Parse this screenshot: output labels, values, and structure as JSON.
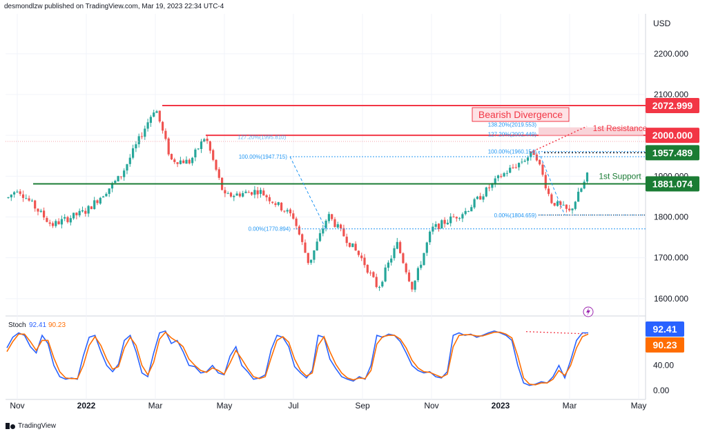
{
  "header": {
    "publisher_text": "desmondlzw published on TradingView.com, Mar 19, 2023 22:34 UTC-4"
  },
  "footer": {
    "logo_text": "TradingView"
  },
  "colors": {
    "up": "#26a69a",
    "down": "#ef5350",
    "resistance": "#f23645",
    "support": "#1b7c34",
    "fib": "#2196f3",
    "stoch_k": "#2962ff",
    "stoch_d": "#ff6d00",
    "divergence": "#f23645",
    "tag_blue": "#2962ff",
    "tag_orange": "#ff6d00",
    "grid": "#f0f3fa"
  },
  "chart_data": [
    {
      "type": "candlestick",
      "title": "",
      "currency_label": "USD",
      "x_tick_labels": [
        "Nov",
        "2022",
        "Mar",
        "May",
        "Jul",
        "Sep",
        "Nov",
        "2023",
        "Mar",
        "May"
      ],
      "y_tick_labels": [
        "2200.000",
        "2100.000",
        "1900.000",
        "1800.000",
        "1700.000",
        "1600.000"
      ],
      "ylim": [
        1555,
        2270
      ],
      "grid": true,
      "price_path": [
        [
          "Oct 2021",
          1782
        ],
        [
          "Nov 2021",
          1870
        ],
        [
          "Dec 2021",
          1780
        ],
        [
          "Jan 2022",
          1815
        ],
        [
          "Feb 2022",
          1900
        ],
        [
          "Mar 2022",
          2070
        ],
        [
          "Mar 2022",
          1940
        ],
        [
          "Apr 2022",
          1935
        ],
        [
          "Apr 2022",
          1998
        ],
        [
          "May 2022",
          1850
        ],
        [
          "Jun 2022",
          1865
        ],
        [
          "Jul 2022",
          1800
        ],
        [
          "Jul 2022",
          1685
        ],
        [
          "Aug 2022",
          1805
        ],
        [
          "Sep 2022",
          1695
        ],
        [
          "Sep 2022",
          1625
        ],
        [
          "Oct 2022",
          1735
        ],
        [
          "Oct 2022",
          1625
        ],
        [
          "Nov 2022",
          1770
        ],
        [
          "Dec 2022",
          1815
        ],
        [
          "Jan 2023",
          1900
        ],
        [
          "Feb 2023",
          1960
        ],
        [
          "Feb 2023",
          1840
        ],
        [
          "Mar 2023",
          1812
        ],
        [
          "Mar 2023",
          1888
        ],
        [
          "Mar 2023",
          1985
        ]
      ],
      "levels": [
        {
          "label": "2072.999",
          "value": 2072.999,
          "kind": "resistance"
        },
        {
          "label": "2000.000",
          "value": 2000.0,
          "kind": "resistance"
        },
        {
          "label": "1957.489",
          "value": 1957.489,
          "kind": "support"
        },
        {
          "label": "1881.074",
          "value": 1881.074,
          "kind": "support"
        }
      ],
      "annotations": {
        "bearish_divergence": "Bearish Divergence",
        "resistance_1": "1st Resistance",
        "support_1": "1st Support"
      },
      "fib_left": [
        {
          "label": "127.20%(1995.810)",
          "value": 1995.81
        },
        {
          "label": "100.00%(1947.715)",
          "value": 1947.715
        },
        {
          "label": "0.00%(1770.894)",
          "value": 1770.894
        }
      ],
      "fib_right": [
        {
          "label": "138.20%(2019.553)",
          "value": 2019.553
        },
        {
          "label": "127.20%(2002.449)",
          "value": 2002.449
        },
        {
          "label": "100.00%(1960.154)",
          "value": 1960.154
        },
        {
          "label": "0.00%(1804.659)",
          "value": 1804.659
        }
      ]
    },
    {
      "type": "line",
      "indicator": "Stoch",
      "legend": {
        "name": "Stoch",
        "k_value": "92.41",
        "d_value": "90.23"
      },
      "y_tick_labels": [
        "40.00",
        "0.00"
      ],
      "ylim": [
        -8,
        108
      ],
      "series": [
        {
          "name": "92.41",
          "values": [
            68,
            85,
            92,
            88,
            70,
            60,
            88,
            75,
            40,
            22,
            18,
            20,
            18,
            55,
            85,
            88,
            62,
            40,
            30,
            42,
            80,
            88,
            62,
            28,
            22,
            60,
            92,
            95,
            75,
            80,
            62,
            40,
            38,
            28,
            30,
            40,
            28,
            25,
            55,
            70,
            40,
            30,
            18,
            20,
            25,
            65,
            88,
            85,
            70,
            38,
            28,
            20,
            32,
            88,
            85,
            50,
            35,
            22,
            18,
            15,
            22,
            18,
            40,
            88,
            85,
            90,
            88,
            78,
            60,
            40,
            32,
            28,
            30,
            22,
            20,
            30,
            88,
            92,
            88,
            90,
            85,
            88,
            92,
            95,
            92,
            88,
            80,
            40,
            12,
            8,
            10,
            14,
            12,
            22,
            40,
            20,
            48,
            80,
            92,
            92
          ]
        },
        {
          "name": "90.23",
          "values": [
            62,
            78,
            90,
            90,
            78,
            64,
            80,
            80,
            52,
            30,
            20,
            19,
            19,
            40,
            72,
            86,
            72,
            50,
            34,
            38,
            68,
            85,
            72,
            40,
            25,
            45,
            82,
            93,
            84,
            78,
            70,
            50,
            40,
            32,
            29,
            36,
            32,
            26,
            44,
            64,
            50,
            35,
            22,
            19,
            22,
            52,
            80,
            86,
            77,
            50,
            32,
            23,
            28,
            72,
            86,
            62,
            42,
            28,
            20,
            17,
            20,
            19,
            32,
            74,
            86,
            88,
            88,
            82,
            68,
            48,
            36,
            30,
            29,
            25,
            21,
            26,
            70,
            88,
            89,
            89,
            87,
            87,
            90,
            93,
            93,
            90,
            84,
            55,
            20,
            10,
            9,
            12,
            12,
            18,
            32,
            24,
            40,
            68,
            86,
            90
          ]
        }
      ],
      "divergence_line": {
        "from": 94.0,
        "to": 90.5
      }
    }
  ]
}
